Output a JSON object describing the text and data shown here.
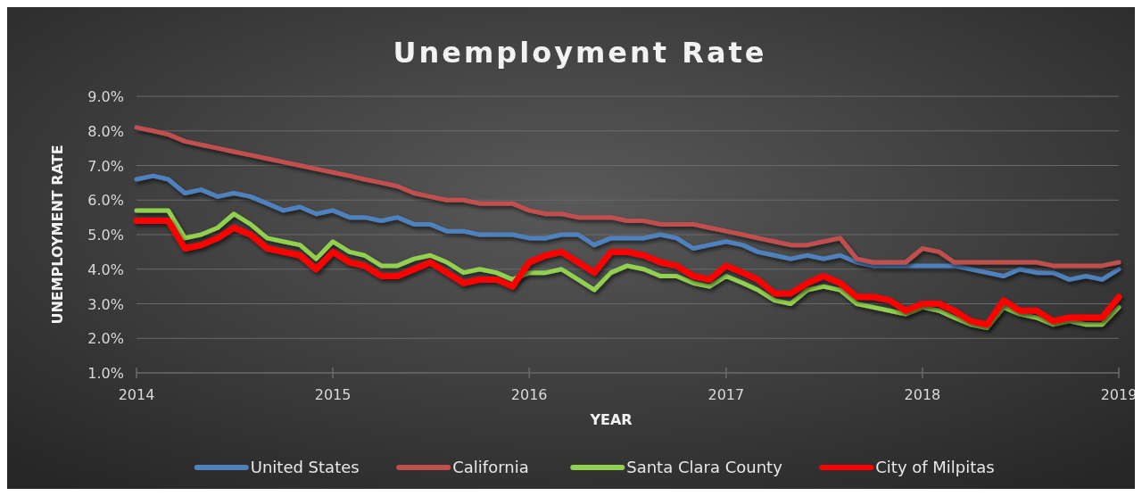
{
  "chart_data": {
    "type": "line",
    "title": "Unemployment Rate",
    "xlabel": "YEAR",
    "ylabel": "UNEMPLOYMENT RATE",
    "x": [
      "2014-01",
      "2014-02",
      "2014-03",
      "2014-04",
      "2014-05",
      "2014-06",
      "2014-07",
      "2014-08",
      "2014-09",
      "2014-10",
      "2014-11",
      "2014-12",
      "2015-01",
      "2015-02",
      "2015-03",
      "2015-04",
      "2015-05",
      "2015-06",
      "2015-07",
      "2015-08",
      "2015-09",
      "2015-10",
      "2015-11",
      "2015-12",
      "2016-01",
      "2016-02",
      "2016-03",
      "2016-04",
      "2016-05",
      "2016-06",
      "2016-07",
      "2016-08",
      "2016-09",
      "2016-10",
      "2016-11",
      "2016-12",
      "2017-01",
      "2017-02",
      "2017-03",
      "2017-04",
      "2017-05",
      "2017-06",
      "2017-07",
      "2017-08",
      "2017-09",
      "2017-10",
      "2017-11",
      "2017-12",
      "2018-01",
      "2018-02",
      "2018-03",
      "2018-04",
      "2018-05",
      "2018-06",
      "2018-07",
      "2018-08",
      "2018-09",
      "2018-10",
      "2018-11",
      "2018-12",
      "2019-01"
    ],
    "series": [
      {
        "name": "United States",
        "color": "#4f81bd",
        "values": [
          6.6,
          6.7,
          6.6,
          6.2,
          6.3,
          6.1,
          6.2,
          6.1,
          5.9,
          5.7,
          5.8,
          5.6,
          5.7,
          5.5,
          5.5,
          5.4,
          5.5,
          5.3,
          5.3,
          5.1,
          5.1,
          5.0,
          5.0,
          5.0,
          4.9,
          4.9,
          5.0,
          5.0,
          4.7,
          4.9,
          4.9,
          4.9,
          5.0,
          4.9,
          4.6,
          4.7,
          4.8,
          4.7,
          4.5,
          4.4,
          4.3,
          4.4,
          4.3,
          4.4,
          4.2,
          4.1,
          4.1,
          4.1,
          4.1,
          4.1,
          4.1,
          4.0,
          3.9,
          3.8,
          4.0,
          3.9,
          3.9,
          3.7,
          3.8,
          3.7,
          4.0
        ]
      },
      {
        "name": "California",
        "color": "#c0504d",
        "values": [
          8.1,
          8.0,
          7.9,
          7.7,
          7.6,
          7.5,
          7.4,
          7.3,
          7.2,
          7.1,
          7.0,
          6.9,
          6.8,
          6.7,
          6.6,
          6.5,
          6.4,
          6.2,
          6.1,
          6.0,
          6.0,
          5.9,
          5.9,
          5.9,
          5.7,
          5.6,
          5.6,
          5.5,
          5.5,
          5.5,
          5.4,
          5.4,
          5.3,
          5.3,
          5.3,
          5.2,
          5.1,
          5.0,
          4.9,
          4.8,
          4.7,
          4.7,
          4.8,
          4.9,
          4.3,
          4.2,
          4.2,
          4.2,
          4.6,
          4.5,
          4.2,
          4.2,
          4.2,
          4.2,
          4.2,
          4.2,
          4.1,
          4.1,
          4.1,
          4.1,
          4.2
        ]
      },
      {
        "name": "Santa Clara County",
        "color": "#92d050",
        "values": [
          5.7,
          5.7,
          5.7,
          4.9,
          5.0,
          5.2,
          5.6,
          5.3,
          4.9,
          4.8,
          4.7,
          4.3,
          4.8,
          4.5,
          4.4,
          4.1,
          4.1,
          4.3,
          4.4,
          4.2,
          3.9,
          4.0,
          3.9,
          3.7,
          3.9,
          3.9,
          4.0,
          3.7,
          3.4,
          3.9,
          4.1,
          4.0,
          3.8,
          3.8,
          3.6,
          3.5,
          3.8,
          3.6,
          3.4,
          3.1,
          3.0,
          3.4,
          3.5,
          3.4,
          3.0,
          2.9,
          2.8,
          2.7,
          2.9,
          2.8,
          2.6,
          2.4,
          2.3,
          2.9,
          2.7,
          2.6,
          2.4,
          2.5,
          2.4,
          2.4,
          2.9
        ]
      },
      {
        "name": "City of Milpitas",
        "color": "#ff0000",
        "values": [
          5.4,
          5.4,
          5.4,
          4.6,
          4.7,
          4.9,
          5.2,
          5.0,
          4.6,
          4.5,
          4.4,
          4.0,
          4.5,
          4.2,
          4.1,
          3.8,
          3.8,
          4.0,
          4.2,
          3.9,
          3.6,
          3.7,
          3.7,
          3.5,
          4.2,
          4.4,
          4.5,
          4.2,
          3.9,
          4.5,
          4.5,
          4.4,
          4.2,
          4.1,
          3.8,
          3.7,
          4.1,
          3.9,
          3.7,
          3.3,
          3.3,
          3.6,
          3.8,
          3.6,
          3.2,
          3.2,
          3.1,
          2.8,
          3.0,
          3.0,
          2.8,
          2.5,
          2.4,
          3.1,
          2.8,
          2.8,
          2.5,
          2.6,
          2.6,
          2.6,
          3.2
        ]
      }
    ],
    "xlim": [
      "2014-01",
      "2019-01"
    ],
    "xticks": [
      {
        "value": "2014-01",
        "label": "2014"
      },
      {
        "value": "2015-01",
        "label": "2015"
      },
      {
        "value": "2016-01",
        "label": "2016"
      },
      {
        "value": "2017-01",
        "label": "2017"
      },
      {
        "value": "2018-01",
        "label": "2018"
      },
      {
        "value": "2019-01",
        "label": "2019"
      }
    ],
    "ylim": [
      1,
      9
    ],
    "yticks": [
      {
        "value": 1,
        "label": "1.0%"
      },
      {
        "value": 2,
        "label": "2.0%"
      },
      {
        "value": 3,
        "label": "3.0%"
      },
      {
        "value": 4,
        "label": "4.0%"
      },
      {
        "value": 5,
        "label": "5.0%"
      },
      {
        "value": 6,
        "label": "6.0%"
      },
      {
        "value": 7,
        "label": "7.0%"
      },
      {
        "value": 8,
        "label": "8.0%"
      },
      {
        "value": 9,
        "label": "9.0%"
      }
    ],
    "grid": "y",
    "legend": "bottom",
    "marker": "none",
    "line_style": "solid"
  }
}
